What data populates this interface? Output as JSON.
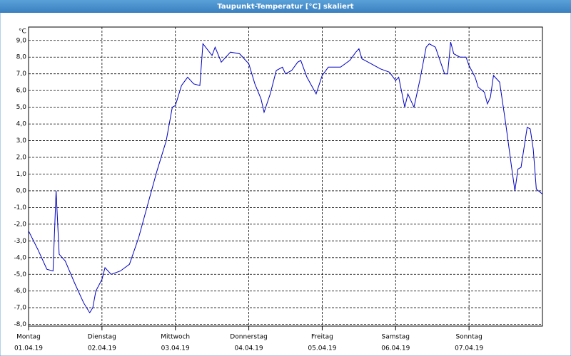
{
  "chart_data": {
    "type": "line",
    "title": "Taupunkt-Temperatur [°C] skaliert",
    "y_unit": "°C",
    "xlim": [
      0,
      168
    ],
    "ylim": [
      -8.1,
      9.8
    ],
    "yticks": [
      {
        "value": 9,
        "label": "9,0"
      },
      {
        "value": 8,
        "label": "8,0"
      },
      {
        "value": 7,
        "label": "7,0"
      },
      {
        "value": 6,
        "label": "6,0"
      },
      {
        "value": 5,
        "label": "5,0"
      },
      {
        "value": 4,
        "label": "4,0"
      },
      {
        "value": 3,
        "label": "3,0"
      },
      {
        "value": 2,
        "label": "2,0"
      },
      {
        "value": 1,
        "label": "1,0"
      },
      {
        "value": 0,
        "label": "0,0"
      },
      {
        "value": -1,
        "label": "-1,0"
      },
      {
        "value": -2,
        "label": "-2,0"
      },
      {
        "value": -3,
        "label": "-3,0"
      },
      {
        "value": -4,
        "label": "-4,0"
      },
      {
        "value": -5,
        "label": "-5,0"
      },
      {
        "value": -6,
        "label": "-6,0"
      },
      {
        "value": -7,
        "label": "-7,0"
      },
      {
        "value": -8,
        "label": "-8,0"
      }
    ],
    "xticks": [
      {
        "value": 0,
        "label": "Montag",
        "date": "01.04.19"
      },
      {
        "value": 24,
        "label": "Dienstag",
        "date": "02.04.19"
      },
      {
        "value": 48,
        "label": "Mittwoch",
        "date": "03.04.19"
      },
      {
        "value": 72,
        "label": "Donnerstag",
        "date": "04.04.19"
      },
      {
        "value": 96,
        "label": "Freitag",
        "date": "05.04.19"
      },
      {
        "value": 120,
        "label": "Samstag",
        "date": "06.04.19"
      },
      {
        "value": 144,
        "label": "Sonntag",
        "date": "07.04.19"
      }
    ],
    "grid": true,
    "series": [
      {
        "color": "#0000c0",
        "x": [
          0,
          3,
          6,
          8,
          9,
          10,
          12,
          15,
          18,
          20,
          21,
          22,
          24,
          25,
          27,
          30,
          33,
          36,
          39,
          42,
          45,
          47,
          48,
          50,
          52,
          54,
          56,
          57,
          60,
          61,
          63,
          66,
          69,
          72,
          74,
          76,
          77,
          79,
          81,
          83,
          84,
          86,
          88,
          89,
          91,
          94,
          96,
          98,
          102,
          105,
          107,
          108,
          109,
          112,
          115,
          118,
          120,
          121,
          123,
          124,
          126,
          128,
          130,
          131,
          133,
          136,
          137,
          138,
          139,
          141,
          143,
          144,
          146,
          147,
          149,
          150,
          151,
          152,
          154,
          156,
          158,
          159,
          160,
          161,
          163,
          164,
          165,
          166,
          168
        ],
        "values": [
          -2.4,
          -3.5,
          -4.7,
          -4.8,
          0.0,
          -3.8,
          -4.2,
          -5.5,
          -6.7,
          -7.3,
          -7.0,
          -6.0,
          -5.3,
          -4.6,
          -5.0,
          -4.8,
          -4.4,
          -2.8,
          -0.8,
          1.2,
          3.0,
          5.0,
          5.1,
          6.3,
          6.8,
          6.4,
          6.3,
          8.8,
          8.1,
          8.6,
          7.7,
          8.3,
          8.2,
          7.6,
          6.4,
          5.5,
          4.7,
          5.8,
          7.2,
          7.4,
          7.0,
          7.2,
          7.7,
          7.8,
          6.8,
          5.8,
          6.9,
          7.4,
          7.4,
          7.8,
          8.3,
          8.5,
          7.9,
          7.6,
          7.3,
          7.1,
          6.6,
          6.8,
          5.0,
          5.8,
          5.0,
          6.7,
          8.6,
          8.8,
          8.6,
          7.0,
          7.0,
          8.9,
          8.2,
          8.0,
          8.0,
          7.5,
          6.8,
          6.2,
          5.9,
          5.2,
          5.6,
          6.9,
          6.5,
          4.0,
          1.3,
          0.0,
          1.3,
          1.4,
          3.8,
          3.7,
          2.5,
          0.1,
          -0.2
        ]
      }
    ]
  }
}
